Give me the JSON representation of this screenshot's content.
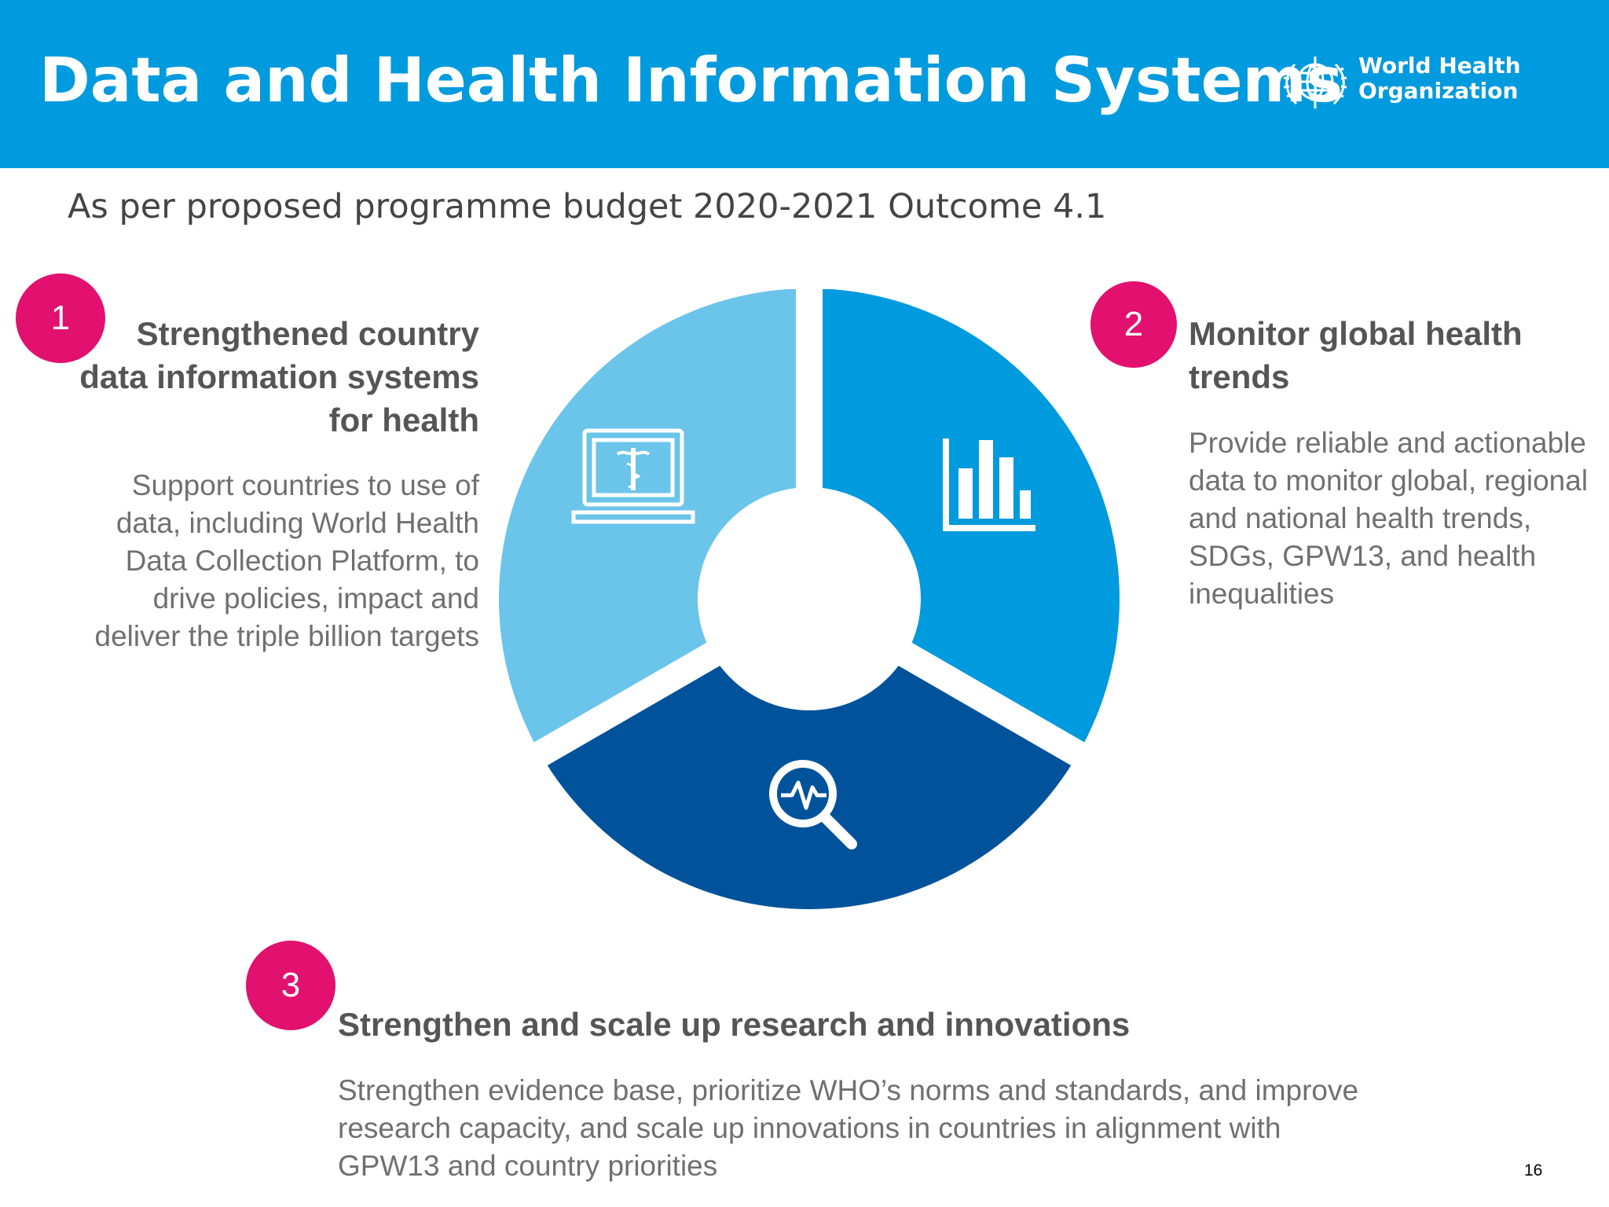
{
  "header": {
    "title": "Data and Health Information Systems",
    "logo_line1": "World Health",
    "logo_line2": "Organization"
  },
  "subtitle": "As per proposed programme budget 2020-2021 Outcome 4.1",
  "items": [
    {
      "number": "1",
      "title": "Strengthened country data information systems for health",
      "description": "Support countries to use of data, including World Health Data Collection Platform, to drive policies, impact and deliver the triple billion targets",
      "icon": "laptop-caduceus-icon",
      "color": "#6BC4EA"
    },
    {
      "number": "2",
      "title": "Monitor global health trends",
      "description": "Provide reliable and actionable data to monitor global, regional and national health trends, SDGs, GPW13, and health inequalities",
      "icon": "bar-chart-icon",
      "color": "#009ADE"
    },
    {
      "number": "3",
      "title": "Strengthen and scale up research and innovations",
      "description": "Strengthen evidence base, prioritize WHO’s norms and standards, and improve research capacity, and scale up innovations in countries in alignment with GPW13 and country priorities",
      "icon": "magnifier-pulse-icon",
      "color": "#00529B"
    }
  ],
  "colors": {
    "header": "#009ADE",
    "badge": "#E2106E"
  },
  "page_number": "16"
}
